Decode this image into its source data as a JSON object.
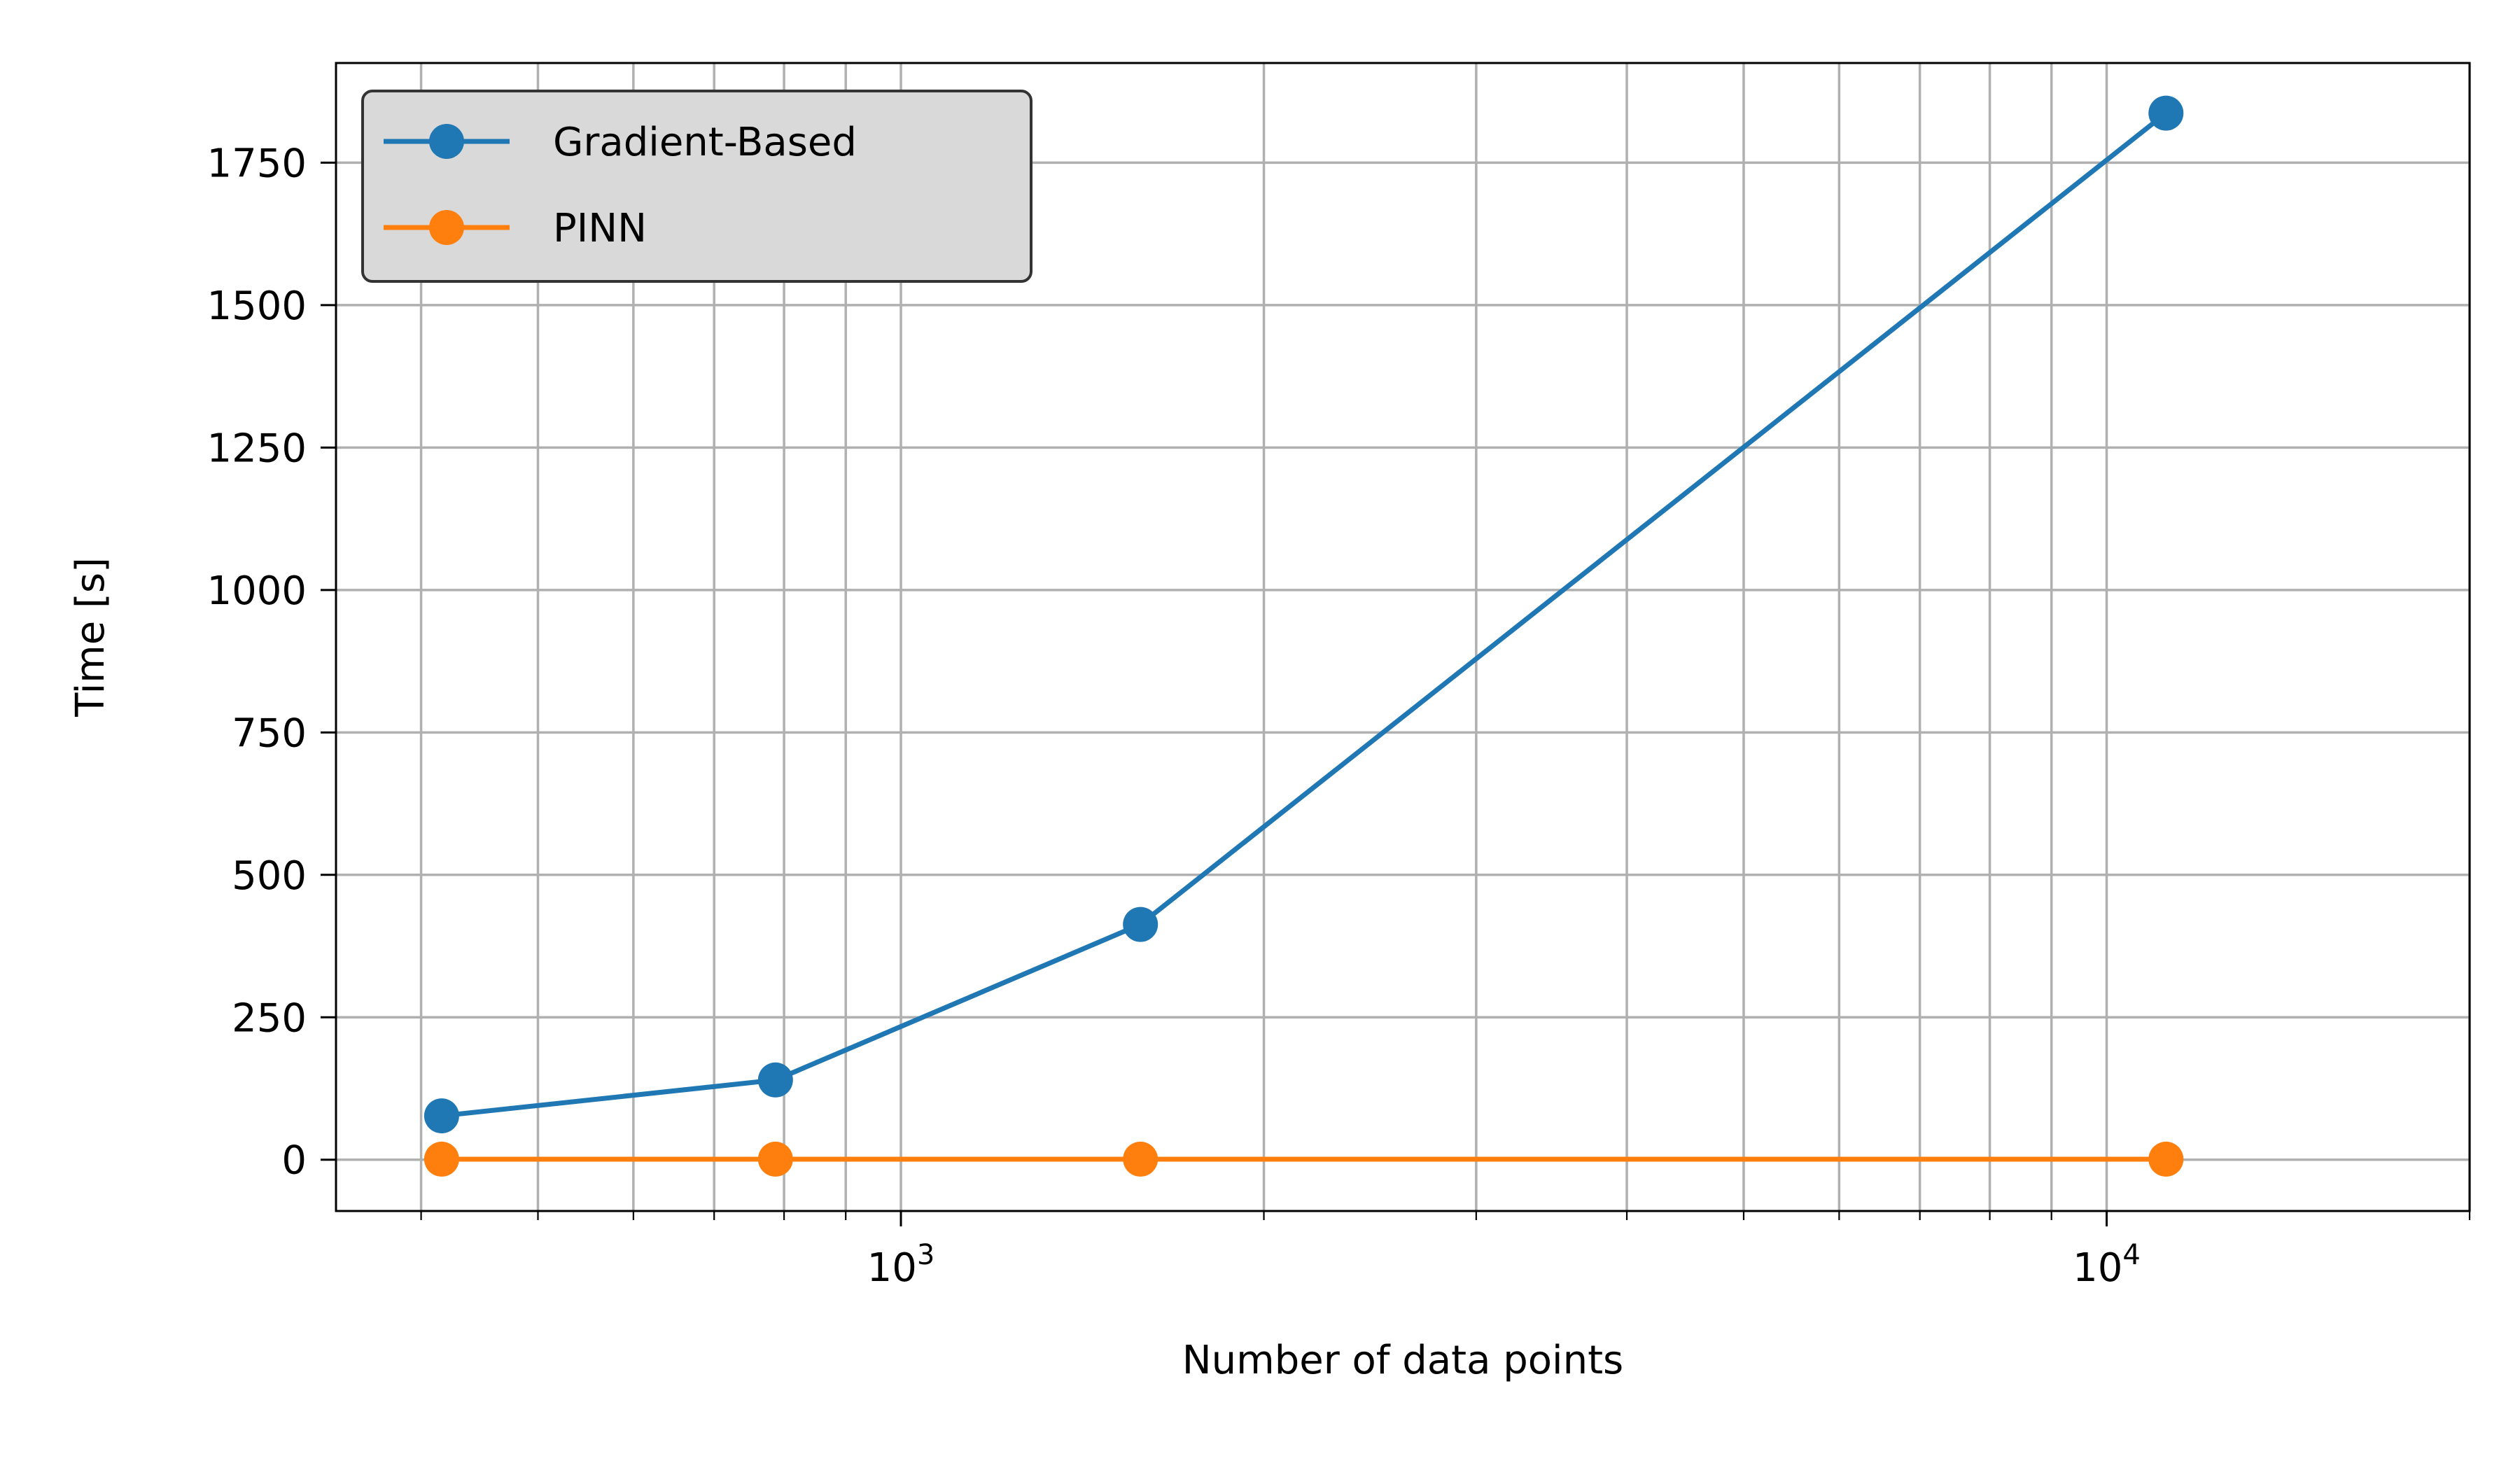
{
  "chart_data": {
    "type": "line",
    "title": "",
    "xlabel": "Number of data points",
    "ylabel": "Time [s]",
    "xscale": "log",
    "xlim": [
      340,
      20000
    ],
    "ylim": [
      -90,
      1925
    ],
    "grid": "on (major and minor x, major y)",
    "legend_position": "top-left",
    "x_tick_labels": [
      {
        "value": 1000,
        "base": "10",
        "exponent": "3"
      },
      {
        "value": 10000,
        "base": "10",
        "exponent": "4"
      }
    ],
    "y_ticks": [
      0,
      250,
      500,
      750,
      1000,
      1250,
      1500,
      1750
    ],
    "series": [
      {
        "name": "Gradient-Based",
        "color": "#1f77b4",
        "x": [
          416,
          787,
          1580,
          11200
        ],
        "y": [
          77,
          140,
          413,
          1837
        ]
      },
      {
        "name": "PINN",
        "color": "#ff7f0e",
        "x": [
          416,
          787,
          1580,
          11200
        ],
        "y": [
          1,
          1,
          1,
          1
        ]
      }
    ]
  }
}
